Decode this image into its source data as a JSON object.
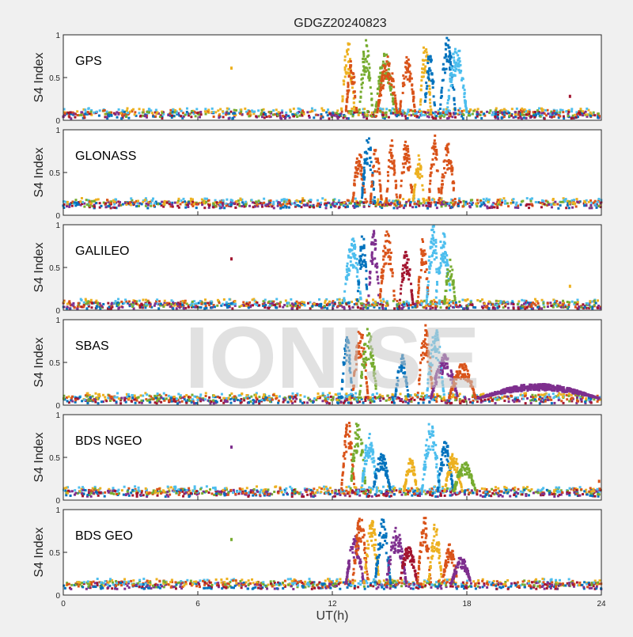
{
  "chart_data": {
    "type": "scatter",
    "title": "GDGZ20240823",
    "xlabel": "UT(h)",
    "ylabel": "S4 Index",
    "xlim": [
      0,
      24
    ],
    "ylim": [
      0,
      1
    ],
    "xticks": [
      "0",
      "6",
      "12",
      "18",
      "24"
    ],
    "yticks": [
      "0",
      "0.5",
      "1"
    ],
    "watermark": "IONISE",
    "grid": false,
    "series_colors": [
      "#0072BD",
      "#D95319",
      "#EDB120",
      "#7E2F8E",
      "#77AC30",
      "#4DBEEE",
      "#A2142F"
    ],
    "panels": [
      {
        "name": "GPS",
        "baseline": 0.08,
        "bursts": [
          [
            12.4,
            13.0,
            2,
            0.95
          ],
          [
            12.6,
            13.1,
            1,
            0.7
          ],
          [
            13.2,
            13.8,
            4,
            0.95
          ],
          [
            13.9,
            14.8,
            4,
            0.8
          ],
          [
            14.0,
            14.9,
            1,
            0.75
          ],
          [
            15.0,
            15.7,
            1,
            0.75
          ],
          [
            15.9,
            16.4,
            2,
            0.95
          ],
          [
            16.1,
            16.6,
            0,
            0.8
          ],
          [
            16.8,
            17.5,
            0,
            1.0
          ],
          [
            17.1,
            18.0,
            5,
            0.9
          ]
        ],
        "outliers": [
          [
            7.5,
            0.61,
            2
          ],
          [
            22.6,
            0.28,
            6
          ]
        ]
      },
      {
        "name": "GLONASS",
        "baseline": 0.14,
        "bursts": [
          [
            12.9,
            13.5,
            1,
            0.75
          ],
          [
            13.3,
            13.9,
            0,
            0.95
          ],
          [
            13.7,
            14.2,
            1,
            0.85
          ],
          [
            14.4,
            14.9,
            1,
            0.9
          ],
          [
            15.0,
            15.6,
            1,
            0.9
          ],
          [
            15.6,
            16.1,
            2,
            0.7
          ],
          [
            16.3,
            16.8,
            1,
            0.95
          ],
          [
            16.8,
            17.5,
            1,
            0.85
          ]
        ],
        "outliers": []
      },
      {
        "name": "GALILEO",
        "baseline": 0.07,
        "bursts": [
          [
            12.5,
            13.3,
            5,
            0.85
          ],
          [
            13.1,
            13.6,
            0,
            0.9
          ],
          [
            13.6,
            14.1,
            3,
            0.95
          ],
          [
            14.1,
            14.8,
            1,
            0.95
          ],
          [
            15.0,
            15.6,
            6,
            0.7
          ],
          [
            15.8,
            16.3,
            1,
            0.85
          ],
          [
            16.2,
            16.8,
            5,
            1.0
          ],
          [
            16.6,
            17.3,
            5,
            0.95
          ],
          [
            17.0,
            17.5,
            4,
            0.6
          ]
        ],
        "outliers": [
          [
            7.5,
            0.6,
            6
          ],
          [
            22.6,
            0.28,
            2
          ]
        ]
      },
      {
        "name": "SBAS",
        "baseline": 0.08,
        "bursts": [
          [
            12.4,
            12.9,
            0,
            0.85
          ],
          [
            12.9,
            13.6,
            1,
            0.95
          ],
          [
            13.2,
            14.0,
            4,
            0.9
          ],
          [
            14.8,
            15.4,
            0,
            0.6
          ],
          [
            15.8,
            16.5,
            1,
            0.95
          ],
          [
            16.2,
            17.0,
            5,
            0.9
          ],
          [
            16.4,
            17.6,
            3,
            0.6
          ],
          [
            17.2,
            18.4,
            1,
            0.5
          ],
          [
            18.5,
            23.9,
            3,
            0.25
          ]
        ],
        "outliers": []
      },
      {
        "name": "BDS NGEO",
        "baseline": 0.1,
        "bursts": [
          [
            12.4,
            13.0,
            1,
            0.95
          ],
          [
            12.8,
            13.5,
            4,
            0.95
          ],
          [
            13.3,
            14.0,
            5,
            0.8
          ],
          [
            13.8,
            14.6,
            0,
            0.55
          ],
          [
            15.2,
            15.8,
            2,
            0.5
          ],
          [
            16.0,
            16.8,
            5,
            0.95
          ],
          [
            16.7,
            17.4,
            0,
            0.7
          ],
          [
            17.0,
            17.8,
            2,
            0.55
          ],
          [
            17.4,
            18.4,
            4,
            0.45
          ]
        ],
        "outliers": [
          [
            7.5,
            0.62,
            3
          ],
          [
            23.9,
            0.22,
            1
          ]
        ]
      },
      {
        "name": "BDS GEO",
        "baseline": 0.13,
        "bursts": [
          [
            12.6,
            13.4,
            3,
            0.7
          ],
          [
            12.9,
            13.6,
            1,
            0.95
          ],
          [
            13.4,
            14.1,
            2,
            0.9
          ],
          [
            13.9,
            14.6,
            0,
            0.9
          ],
          [
            14.4,
            15.3,
            3,
            0.8
          ],
          [
            15.0,
            15.8,
            6,
            0.6
          ],
          [
            15.8,
            16.4,
            1,
            0.95
          ],
          [
            16.3,
            16.9,
            2,
            0.85
          ],
          [
            16.9,
            17.6,
            1,
            0.6
          ],
          [
            17.3,
            18.2,
            3,
            0.45
          ]
        ],
        "outliers": [
          [
            7.5,
            0.65,
            4
          ]
        ]
      }
    ]
  }
}
